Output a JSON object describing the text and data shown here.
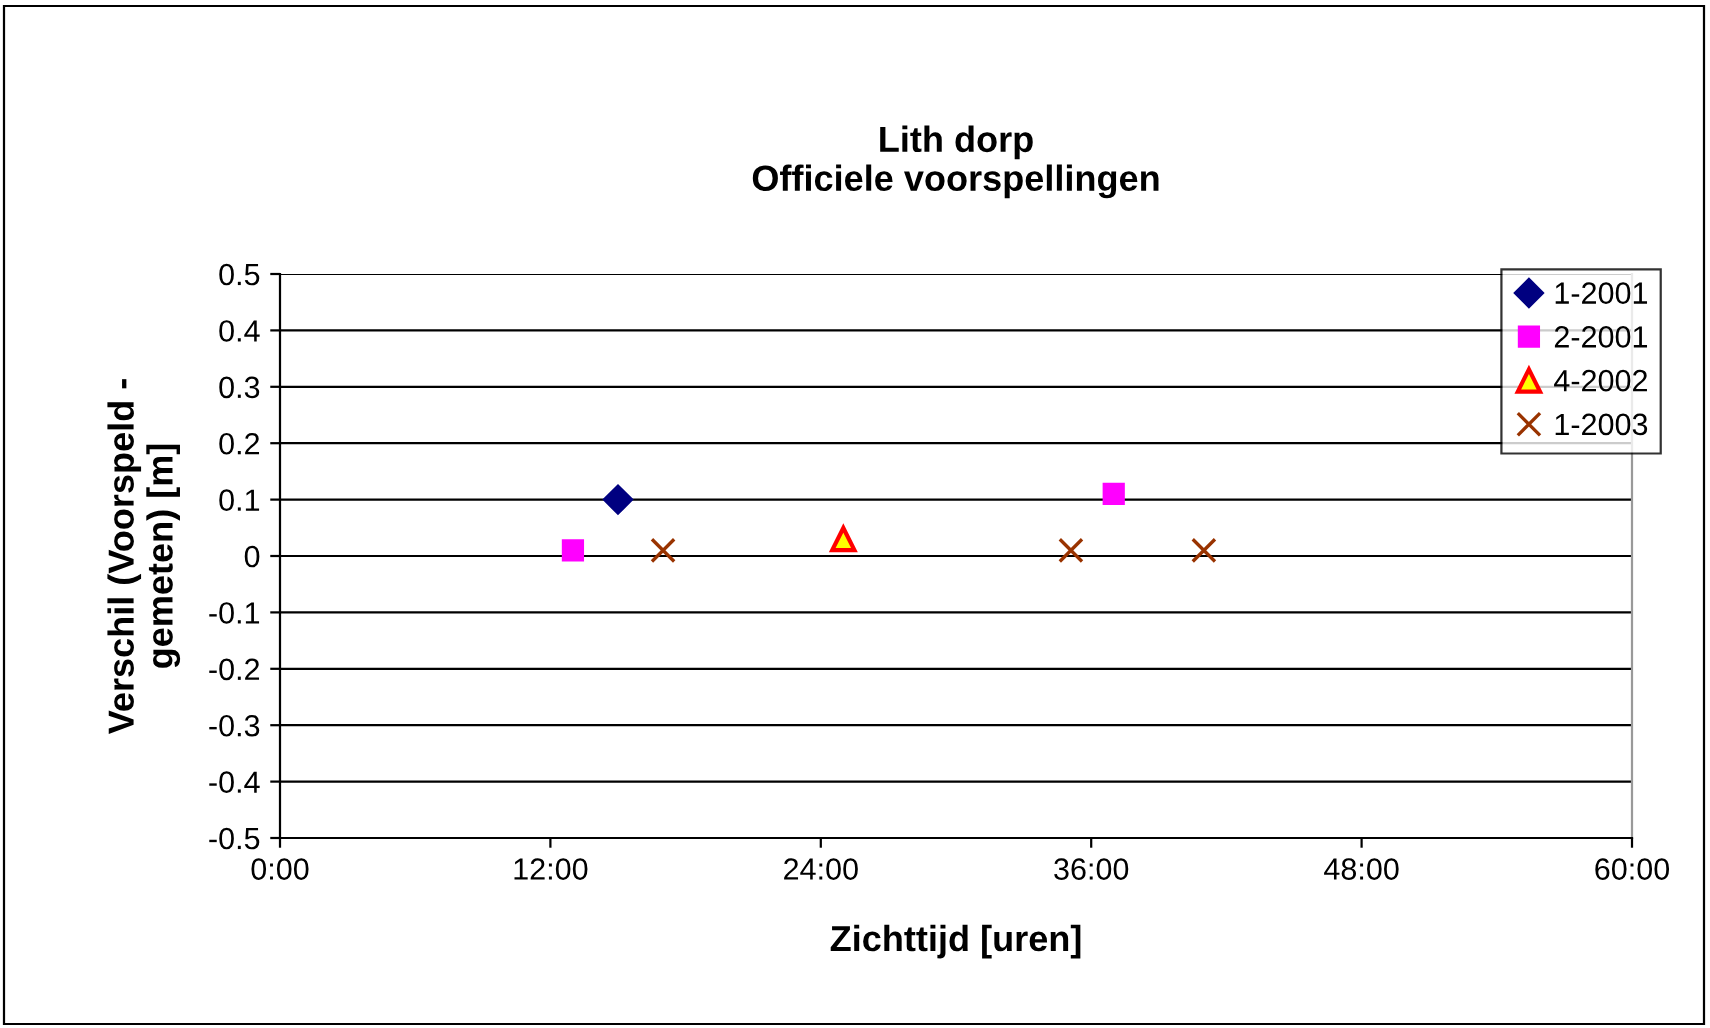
{
  "chart_data": {
    "type": "scatter",
    "title": "Lith dorp\nOfficiele voorspellingen",
    "xlabel": "Zichttijd [uren]",
    "ylabel": "Verschil (Voorspeld -\ngemeten) [m]",
    "series": [
      {
        "name": "1-2001",
        "color": "#000080",
        "marker": "diamond",
        "x": [
          15.0
        ],
        "values": [
          0.1
        ]
      },
      {
        "name": "2-2001",
        "color": "#ff00ff",
        "marker": "square",
        "x": [
          13.0,
          37.0
        ],
        "values": [
          0.01,
          0.11
        ]
      },
      {
        "name": "4-2002",
        "color": "#ffff00",
        "marker": "triangle",
        "x": [
          25.0
        ],
        "values": [
          0.03
        ]
      },
      {
        "name": "1-2003",
        "color": "#993300",
        "marker": "cross",
        "x": [
          17.0,
          35.1,
          41.0
        ],
        "values": [
          0.01,
          0.01,
          0.01
        ]
      }
    ],
    "xlim": [
      0,
      60
    ],
    "xticks": [
      {
        "value": 0,
        "label": "0:00"
      },
      {
        "value": 12,
        "label": "12:00"
      },
      {
        "value": 24,
        "label": "24:00"
      },
      {
        "value": 36,
        "label": "36:00"
      },
      {
        "value": 48,
        "label": "48:00"
      },
      {
        "value": 60,
        "label": "60:00"
      }
    ],
    "ylim": [
      -0.5,
      0.5
    ],
    "yticks": [
      -0.5,
      -0.4,
      -0.3,
      -0.2,
      -0.1,
      0,
      0.1,
      0.2,
      0.3,
      0.4,
      0.5
    ],
    "grid": "y",
    "legend": "right"
  }
}
